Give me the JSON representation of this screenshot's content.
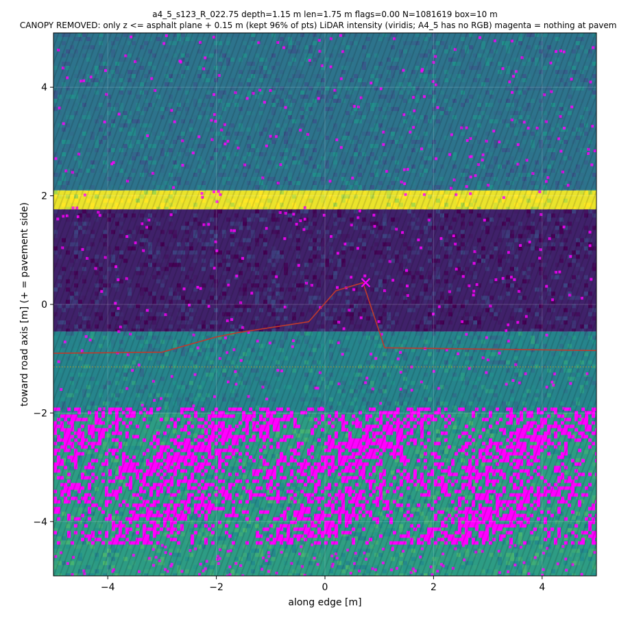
{
  "chart_data": {
    "type": "heatmap",
    "title": "a4_5_s123_R_022.75  depth=1.15 m  len=1.75 m  flags=0.00  N=1081619  box=10 m",
    "subtitle": "CANOPY REMOVED: only z <= asphalt plane + 0.15 m  (kept 96% of pts)   LiDAR intensity (viridis; A4_5 has no RGB)   magenta = nothing at pavement",
    "xlabel": "along edge [m]",
    "ylabel": "toward road axis [m]  (+ = pavement side)",
    "xlim": [
      -5,
      5
    ],
    "ylim": [
      -5,
      5
    ],
    "xticks": [
      -4,
      -2,
      0,
      2,
      4
    ],
    "yticks": [
      -4,
      -2,
      0,
      2,
      4
    ],
    "xtick_labels": [
      "−4",
      "−2",
      "0",
      "2",
      "4"
    ],
    "ytick_labels": [
      "−4",
      "−2",
      "0",
      "2",
      "4"
    ],
    "grid": true,
    "colormap": "viridis",
    "intensity_bands": [
      {
        "y_range": [
          1.75,
          2.1
        ],
        "intensity": 0.97
      },
      {
        "y_range": [
          -0.5,
          1.75
        ],
        "intensity": 0.1
      },
      {
        "y_range": [
          -2.0,
          -0.5
        ],
        "intensity": 0.45
      },
      {
        "y_range": [
          2.1,
          5.0
        ],
        "intensity": 0.38
      },
      {
        "y_range": [
          -5.0,
          -2.0
        ],
        "intensity": 0.55
      }
    ],
    "magenta_zone": {
      "y_range": [
        -4.4,
        -1.9
      ],
      "color": "#ff00ff"
    },
    "edge_line": {
      "color": "#c0392b",
      "x": [
        -5.0,
        -3.0,
        -2.0,
        -1.6,
        -0.3,
        0.2,
        0.7,
        1.1,
        5.0
      ],
      "y": [
        -0.9,
        -0.88,
        -0.6,
        -0.52,
        -0.32,
        0.25,
        0.4,
        -0.8,
        -0.85
      ]
    },
    "reference_line": {
      "y": -1.15,
      "color": "#d4a017",
      "style": "dotted"
    },
    "marker": {
      "x": 0.75,
      "y": 0.4,
      "symbol": "x",
      "color": "#ff00ff"
    }
  }
}
